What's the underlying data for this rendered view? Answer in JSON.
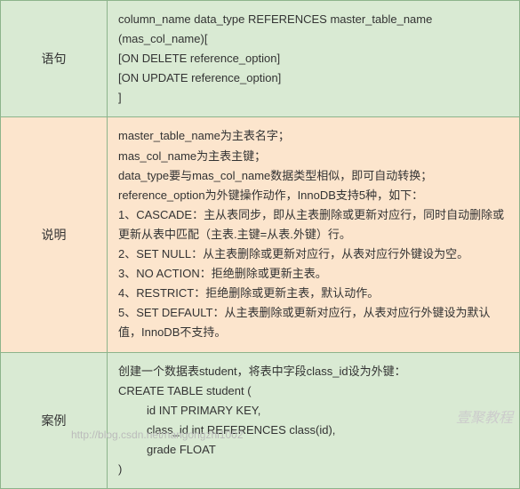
{
  "rows": {
    "syntax": {
      "label": "语句",
      "lines": [
        "column_name  data_type REFERENCES master_table_name",
        "(mas_col_name)[",
        "[ON DELETE reference_option]",
        "[ON UPDATE reference_option]",
        "]"
      ]
    },
    "desc": {
      "label": "说明",
      "lines": [
        "master_table_name为主表名字；",
        "mas_col_name为主表主键；",
        "data_type要与mas_col_name数据类型相似，即可自动转换；",
        "reference_option为外键操作动作，InnoDB支持5种，如下：",
        "1、CASCADE：主从表同步，即从主表删除或更新对应行，同时自动删除或更新从表中匹配（主表.主键=从表.外键）行。",
        "2、SET NULL：从主表删除或更新对应行，从表对应行外键设为空。",
        "3、NO ACTION：拒绝删除或更新主表。",
        "4、RESTRICT：拒绝删除或更新主表，默认动作。",
        "5、SET DEFAULT：从主表删除或更新对应行，从表对应行外键设为默认值，InnoDB不支持。"
      ]
    },
    "example": {
      "label": "案例",
      "lines": [
        "创建一个数据表student，将表中字段class_id设为外键：",
        "CREATE TABLE student (",
        "id INT PRIMARY KEY,",
        "class_id int REFERENCES class(id),",
        "grade FLOAT",
        ")"
      ]
    }
  },
  "watermark": "壹聚教程",
  "footer": "http://blog.csdn.net/nangongzhi1002",
  "colors": {
    "border": "#8db48b",
    "bg_green": "#d9ead3",
    "bg_orange": "#fce5cd",
    "text": "#333333",
    "watermark_color": "#cccccc"
  },
  "fontsize": {
    "body": 13,
    "label": 14
  }
}
